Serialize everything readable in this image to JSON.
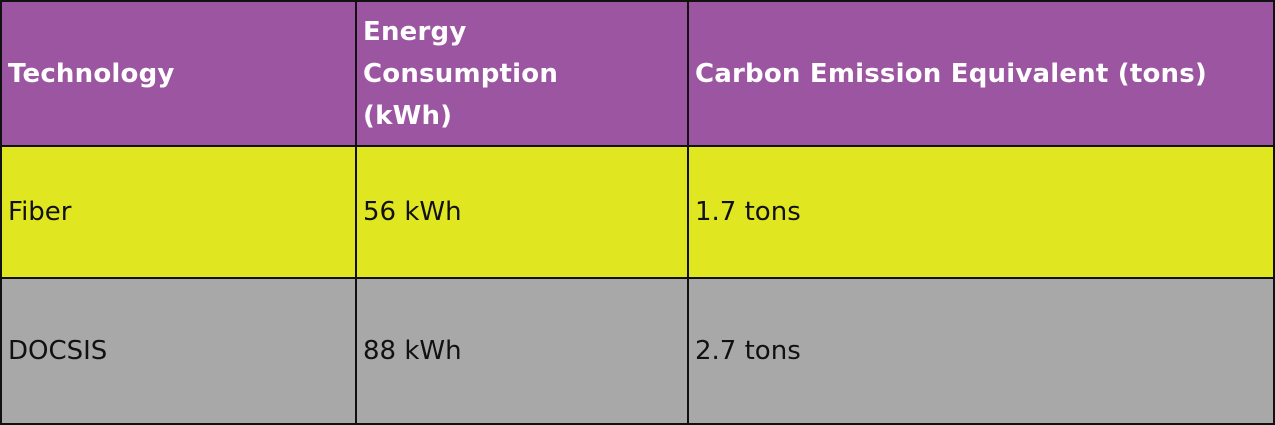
{
  "colors": {
    "header_bg": "#9b55a1",
    "row_fiber_bg": "#e0e61f",
    "row_docsis_bg": "#a8a8a8",
    "border": "#111111"
  },
  "table": {
    "headers": [
      "Technology",
      "Energy Consumption (kWh)",
      "Carbon Emission Equivalent (tons)"
    ],
    "rows": [
      [
        "Fiber",
        "56 kWh",
        "1.7 tons"
      ],
      [
        "DOCSIS",
        "88 kWh",
        "2.7 tons"
      ]
    ]
  }
}
